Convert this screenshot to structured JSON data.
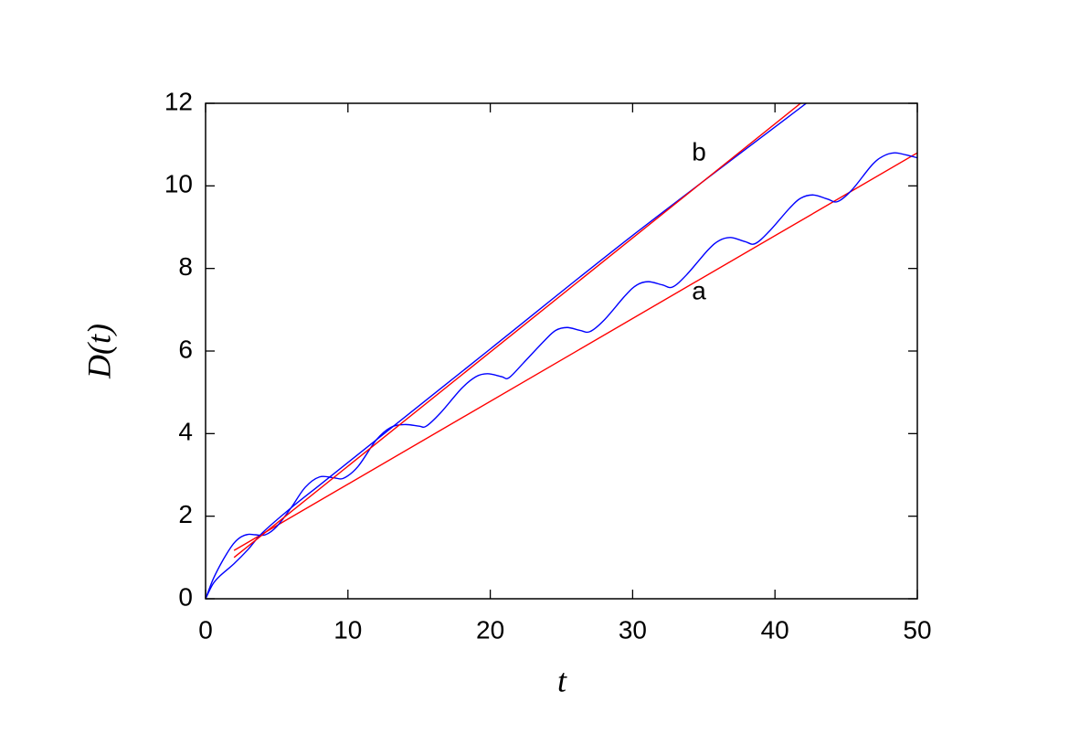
{
  "chart_data": {
    "type": "line",
    "xlabel": "t",
    "ylabel": "D(t)",
    "annotations": [
      "a",
      "b"
    ],
    "xlim": [
      0,
      50
    ],
    "xticks": [
      0,
      10,
      20,
      30,
      40,
      50
    ],
    "ylim": [
      0,
      12
    ],
    "yticks": [
      0,
      2,
      4,
      6,
      8,
      10,
      12
    ],
    "series": [
      {
        "color": "#ff0000",
        "x": [
          2,
          50
        ],
        "values": [
          1.17,
          10.8
        ]
      },
      {
        "color": "#0000ff",
        "x": [
          0,
          0.5,
          1,
          1.5,
          2,
          2.5,
          3,
          3.5,
          4.2,
          5,
          6,
          7,
          8,
          9,
          9.7,
          10.7,
          12,
          13,
          14,
          15,
          15.5,
          16.5,
          18,
          19,
          19.8,
          20.8,
          21.3,
          22.3,
          23.8,
          24.6,
          25.4,
          26.3,
          27,
          28,
          29.5,
          30.3,
          31.1,
          32.1,
          32.8,
          33.8,
          35.3,
          36.1,
          36.9,
          37.9,
          38.6,
          39.6,
          41,
          41.8,
          42.7,
          43.7,
          44.4,
          45.4,
          46.8,
          47.6,
          48.4,
          49.2,
          50
        ],
        "values": [
          0,
          0.45,
          0.8,
          1.1,
          1.35,
          1.5,
          1.56,
          1.55,
          1.55,
          1.75,
          2.2,
          2.7,
          2.95,
          2.93,
          2.92,
          3.2,
          3.85,
          4.15,
          4.22,
          4.18,
          4.18,
          4.5,
          5.1,
          5.38,
          5.45,
          5.38,
          5.35,
          5.7,
          6.25,
          6.5,
          6.57,
          6.5,
          6.47,
          6.75,
          7.35,
          7.6,
          7.68,
          7.6,
          7.55,
          7.85,
          8.45,
          8.68,
          8.75,
          8.65,
          8.6,
          8.9,
          9.45,
          9.7,
          9.78,
          9.68,
          9.62,
          9.9,
          10.5,
          10.72,
          10.8,
          10.75,
          10.68
        ]
      },
      {
        "color": "#0000ff",
        "x": [
          0,
          0.5,
          1,
          2,
          3,
          4,
          6,
          8,
          10,
          20,
          30,
          42.2
        ],
        "values": [
          0,
          0.35,
          0.55,
          0.85,
          1.2,
          1.6,
          2.2,
          2.75,
          3.3,
          6.05,
          8.8,
          12
        ]
      },
      {
        "color": "#ff0000",
        "x": [
          2,
          41.8
        ],
        "values": [
          1.0,
          12
        ]
      }
    ]
  }
}
